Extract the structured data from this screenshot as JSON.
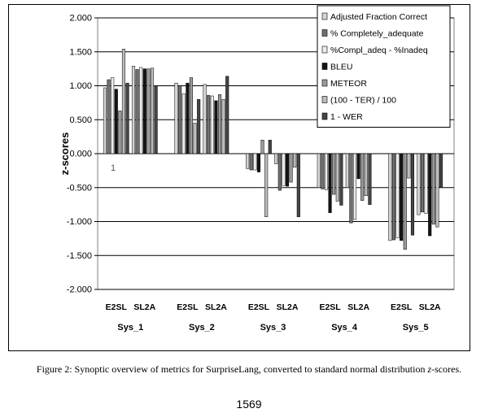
{
  "figure": {
    "caption_prefix": "Figure 2:  Synoptic overview of metrics for SurpriseLang, converted to standard normal distribution ",
    "caption_italic": "z",
    "caption_suffix": "-scores.",
    "page_number": "1569",
    "stray_label": "1"
  },
  "chart_data": {
    "type": "bar",
    "ylabel": "z-scores",
    "ylim": [
      -2.0,
      2.0
    ],
    "yticks": [
      "2.000",
      "1.500",
      "1.000",
      "0.500",
      "0.000",
      "-0.500",
      "-1.000",
      "-1.500",
      "-2.000"
    ],
    "grid": true,
    "legend_position": "top-right",
    "systems": [
      "Sys_1",
      "Sys_2",
      "Sys_3",
      "Sys_4",
      "Sys_5"
    ],
    "directions": [
      "E2SL",
      "SL2A"
    ],
    "series": [
      {
        "name": "Adjusted  Fraction  Correct",
        "color": "#d4d4d4",
        "values": [
          0.97,
          1.29,
          1.04,
          1.02,
          -0.22,
          -0.15,
          -0.5,
          -0.5,
          -1.28,
          -0.9
        ]
      },
      {
        "name": "% Completely_adequate",
        "color": "#707070",
        "values": [
          1.09,
          1.24,
          1.0,
          0.86,
          -0.24,
          -0.54,
          -0.52,
          -1.02,
          -1.27,
          -0.86
        ]
      },
      {
        "name": "%Compl_adeq  - %Inadeq",
        "color": "#ececec",
        "values": [
          1.12,
          1.27,
          0.88,
          0.85,
          -0.24,
          -0.47,
          -0.53,
          -0.97,
          -1.24,
          -0.88
        ]
      },
      {
        "name": "BLEU",
        "color": "#141414",
        "values": [
          0.95,
          1.25,
          1.04,
          0.78,
          -0.27,
          -0.48,
          -0.87,
          -0.37,
          -1.28,
          -1.21
        ]
      },
      {
        "name": "METEOR",
        "color": "#9a9a9a",
        "values": [
          0.63,
          1.25,
          1.12,
          0.87,
          0.2,
          -0.42,
          -0.6,
          -0.69,
          -1.41,
          -1.04
        ]
      },
      {
        "name": "(100 - TER) / 100",
        "color": "#bcbcbc",
        "values": [
          1.54,
          1.26,
          0.45,
          0.8,
          -0.93,
          -0.2,
          -0.7,
          -0.62,
          -0.36,
          -1.08
        ]
      },
      {
        "name": "1 - WER",
        "color": "#454545",
        "values": [
          1.04,
          1.0,
          0.8,
          1.14,
          0.2,
          -0.93,
          -0.76,
          -0.75,
          -1.2,
          -0.5
        ]
      }
    ]
  }
}
